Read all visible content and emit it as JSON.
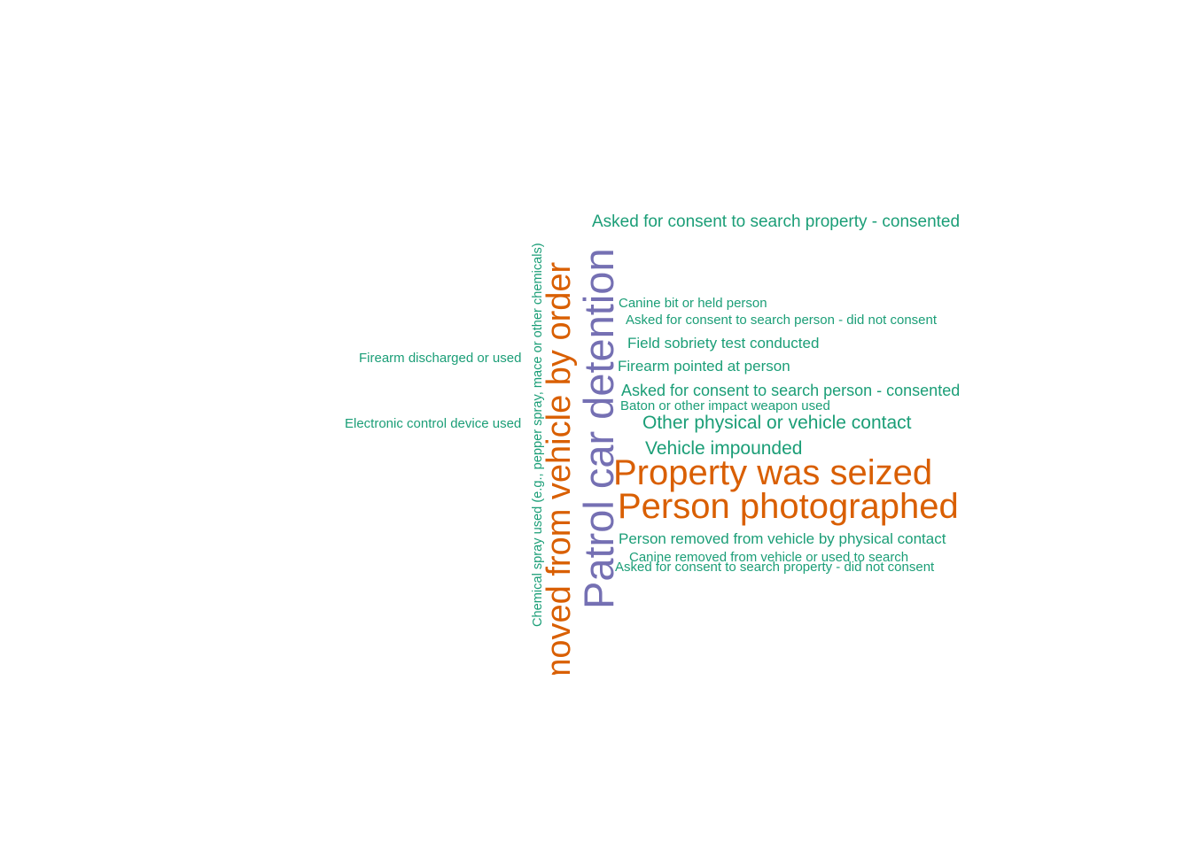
{
  "palette": {
    "small": "#1b9e77",
    "large": "#d95f02",
    "largest": "#7570b3"
  },
  "words": [
    {
      "text": "Patrol car detention",
      "tier": "largest",
      "rank": 1
    },
    {
      "text": "Person removed from vehicle by order",
      "tier": "large",
      "rank": 2
    },
    {
      "text": "Person photographed",
      "tier": "large",
      "rank": 3
    },
    {
      "text": "Property was seized",
      "tier": "large",
      "rank": 4
    },
    {
      "text": "Asked for consent to search property - consented",
      "tier": "small",
      "rank": 5
    },
    {
      "text": "Canine bit or held person",
      "tier": "small",
      "rank": 6
    },
    {
      "text": "Asked for consent to search person - did not consent",
      "tier": "small",
      "rank": 7
    },
    {
      "text": "Field sobriety test conducted",
      "tier": "small",
      "rank": 8
    },
    {
      "text": "Firearm pointed at person",
      "tier": "small",
      "rank": 9
    },
    {
      "text": "Asked for consent to search person - consented",
      "tier": "small",
      "rank": 10
    },
    {
      "text": "Baton or other impact weapon used",
      "tier": "small",
      "rank": 11
    },
    {
      "text": "Other physical or vehicle contact",
      "tier": "small",
      "rank": 12
    },
    {
      "text": "Vehicle impounded",
      "tier": "small",
      "rank": 13
    },
    {
      "text": "Person removed from vehicle by physical contact",
      "tier": "small",
      "rank": 14
    },
    {
      "text": "Canine removed from vehicle or used to search",
      "tier": "small",
      "rank": 15
    },
    {
      "text": "Asked for consent to search property - did not consent",
      "tier": "small",
      "rank": 16
    },
    {
      "text": "Firearm discharged or used",
      "tier": "small",
      "rank": 17
    },
    {
      "text": "Electronic control device used",
      "tier": "small",
      "rank": 18
    },
    {
      "text": "Chemical spray used (e.g., pepper spray, mace or other chemicals)",
      "tier": "small",
      "rank": 19
    }
  ]
}
